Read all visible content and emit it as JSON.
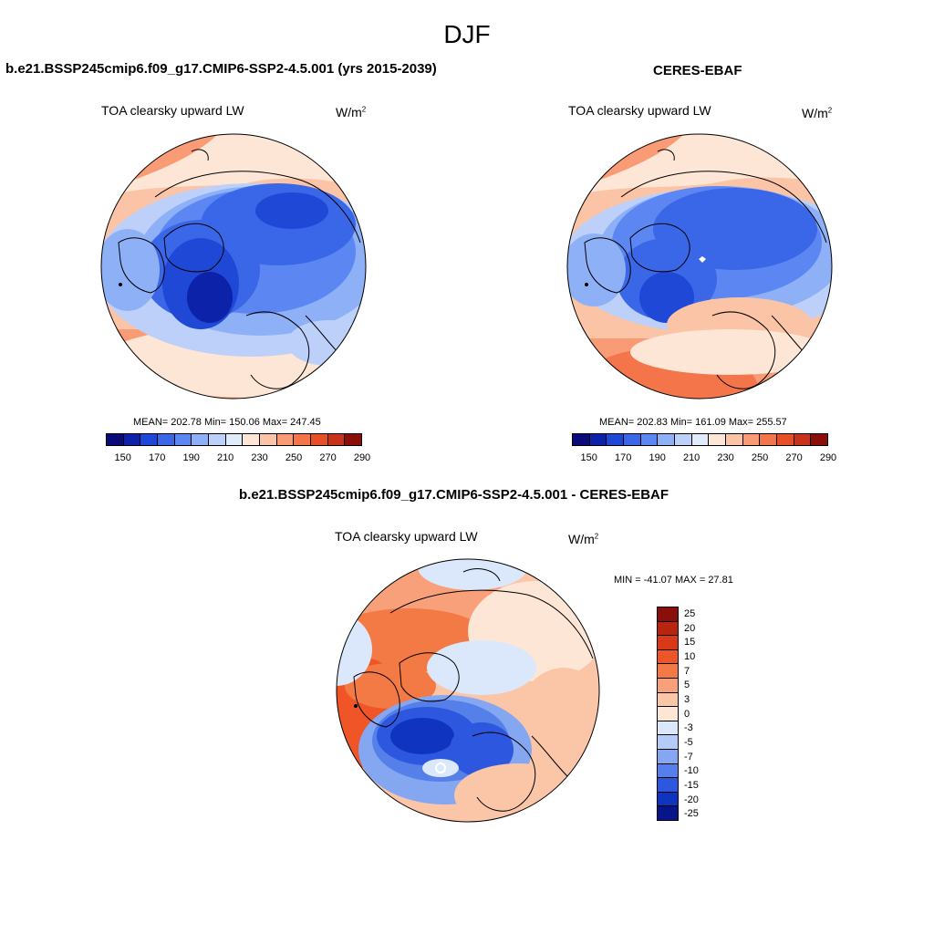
{
  "page": {
    "season": "DJF"
  },
  "panels": {
    "model": {
      "title": "b.e21.BSSP245cmip6.f09_g17.CMIP6-SSP2-4.5.001 (yrs 2015-2039)",
      "variable": "TOA clearsky upward LW",
      "units_base": "W/m",
      "units_sup": "2",
      "stats": "MEAN= 202.78  Min= 150.06  Max= 247.45",
      "colorbar_ticks": [
        "150",
        "170",
        "190",
        "210",
        "230",
        "250",
        "270",
        "290"
      ]
    },
    "obs": {
      "title": "CERES-EBAF",
      "variable": "TOA clearsky upward LW",
      "units_base": "W/m",
      "units_sup": "2",
      "stats": "MEAN= 202.83  Min= 161.09  Max= 255.57",
      "colorbar_ticks": [
        "150",
        "170",
        "190",
        "210",
        "230",
        "250",
        "270",
        "290"
      ]
    },
    "diff": {
      "title": "b.e21.BSSP245cmip6.f09_g17.CMIP6-SSP2-4.5.001 - CERES-EBAF",
      "variable": "TOA clearsky upward LW",
      "units_base": "W/m",
      "units_sup": "2",
      "stats": "MIN = -41.07 MAX =  27.81",
      "colorbar_ticks": [
        "25",
        "20",
        "15",
        "10",
        "7",
        "5",
        "3",
        "0",
        "-3",
        "-5",
        "-7",
        "-10",
        "-15",
        "-20",
        "-25"
      ]
    }
  },
  "colors": {
    "abs_scale": [
      "#0a0a78",
      "#0c22a8",
      "#1f48d6",
      "#3a66e8",
      "#5c87f2",
      "#8eb0f7",
      "#bcd0fa",
      "#e0ebfb",
      "#fde6d6",
      "#fcc4a6",
      "#f99c76",
      "#f47549",
      "#e74f26",
      "#c8321a",
      "#8a0f0a"
    ],
    "diff_scale": [
      "#8a0f0a",
      "#b8250f",
      "#d83a18",
      "#ef5526",
      "#f47a45",
      "#f8a07a",
      "#fbc5a8",
      "#fde6d6",
      "#dbe8fb",
      "#b4cbf7",
      "#85a7f2",
      "#5580ea",
      "#2d57df",
      "#0f34c0",
      "#07148a"
    ]
  }
}
